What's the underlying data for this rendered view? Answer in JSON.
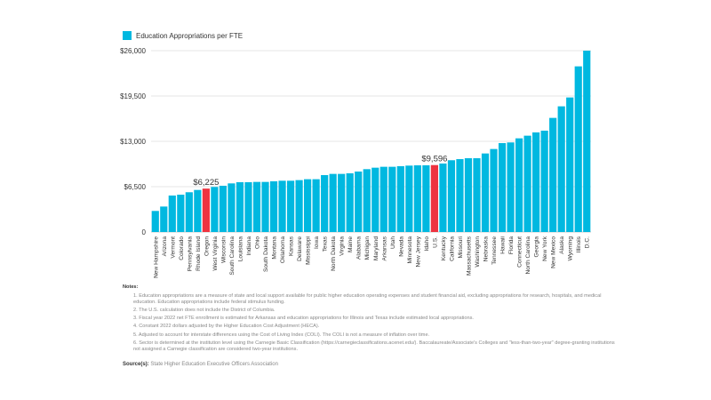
{
  "chart_data": {
    "type": "bar",
    "legend": [
      "Education Appropriations per FTE"
    ],
    "legend_position": "top-left",
    "ylim": [
      0,
      26000
    ],
    "yticks": [
      0,
      6500,
      13000,
      19500,
      26000
    ],
    "ytick_labels": [
      "0",
      "$6,500",
      "$13,000",
      "$19,500",
      "$26,000"
    ],
    "grid": true,
    "colors": {
      "default": "#00B8E0",
      "highlight": "#EE3340"
    },
    "categories": [
      "New Hampshire",
      "Arizona",
      "Vermont",
      "Colorado",
      "Pennsylvania",
      "Rhode Island",
      "Oregon",
      "West Virginia",
      "Wisconsin",
      "South Carolina",
      "Louisiana",
      "Indiana",
      "Ohio",
      "South Dakota",
      "Montana",
      "Oklahoma",
      "Kansas",
      "Delaware",
      "Mississippi",
      "Iowa",
      "Texas",
      "North Dakota",
      "Virginia",
      "Maine",
      "Alabama",
      "Michigan",
      "Maryland",
      "Arkansas",
      "Utah",
      "Nevada",
      "Minnesota",
      "New Jersey",
      "Idaho",
      "U.S.",
      "Kentucky",
      "California",
      "Missouri",
      "Massachusetts",
      "Washington",
      "Nebraska",
      "Tennessee",
      "Hawaii",
      "Florida",
      "Connecticut",
      "North Carolina",
      "Georgia",
      "New York",
      "New Mexico",
      "Alaska",
      "Wyoming",
      "Illinois",
      "D.C."
    ],
    "values": [
      3020,
      3650,
      5230,
      5350,
      5700,
      6030,
      6225,
      6460,
      6630,
      6970,
      7140,
      7140,
      7180,
      7180,
      7270,
      7350,
      7350,
      7440,
      7570,
      7570,
      8160,
      8330,
      8330,
      8420,
      8670,
      9010,
      9220,
      9350,
      9350,
      9440,
      9520,
      9560,
      9570,
      9596,
      9820,
      10290,
      10450,
      10580,
      10580,
      11260,
      11900,
      12750,
      12840,
      13430,
      13810,
      14280,
      14530,
      16360,
      18020,
      19290,
      23750,
      26000
    ],
    "highlighted": [
      "Oregon",
      "U.S."
    ],
    "data_labels": {
      "Oregon": "$6,225",
      "U.S.": "$9,596"
    }
  },
  "notes": {
    "heading": "Notes:",
    "items": [
      "1. Education appropriations are a measure of state and local support available for public higher education operating expenses and student financial aid, excluding appropriations for research, hospitals, and medical education. Education appropriations include federal stimulus funding.",
      "2. The U.S. calculation does not include the District of Columbia.",
      "3. Fiscal year 2022 net FTE enrollment is estimated for Arkansas and education appropriations for Illinois and Texas include estimated local appropriations.",
      "4. Constant 2022 dollars adjusted by the Higher Education Cost Adjustment (HECA).",
      "5. Adjusted to account for interstate differences using the Cost of Living Index (COLI). The COLI is not a measure of inflation over time.",
      "6. Sector is determined at the institution level using the Carnegie Basic Classification (https://carnegieclassifications.acenet.edu/). Baccalaureate/Associate's Colleges and \"less-than-two-year\" degree-granting institutions not assigned a Carnegie classification are considered two-year institutions."
    ]
  },
  "source": {
    "label": "Source(s):",
    "text": "State Higher Education Executive Officers Association"
  }
}
